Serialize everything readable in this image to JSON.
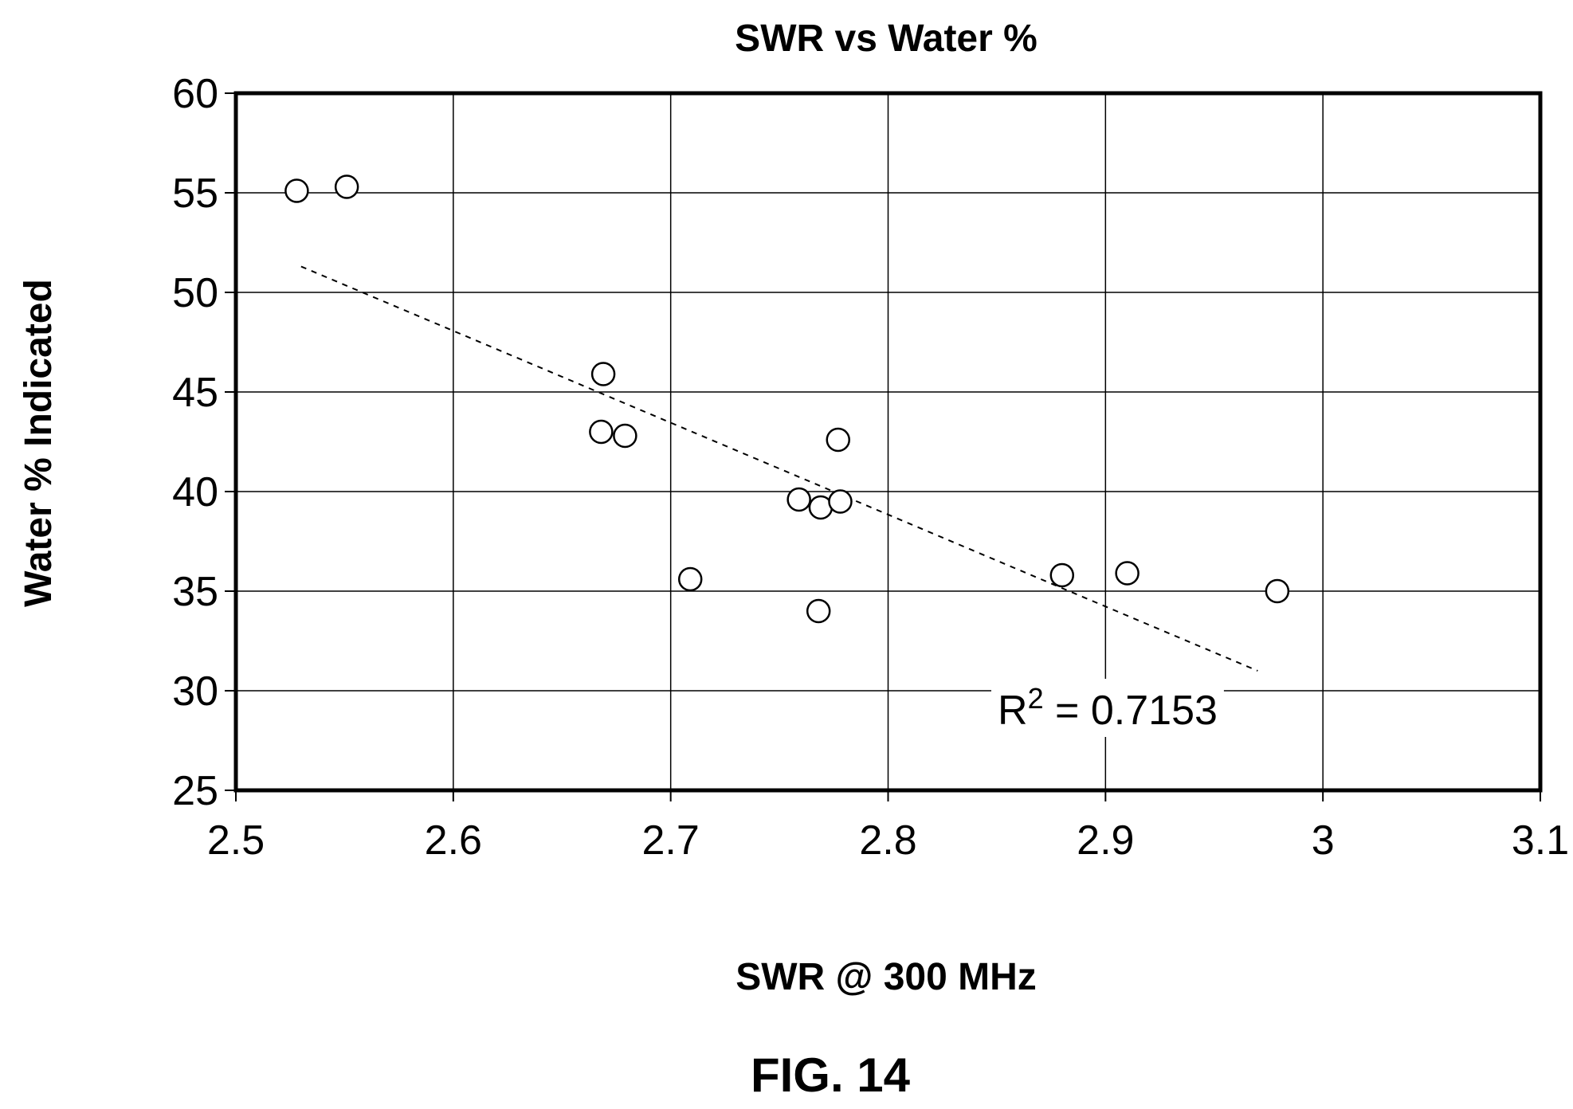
{
  "figure_caption": "FIG. 14",
  "chart_data": {
    "type": "scatter",
    "title": "SWR vs Water %",
    "xlabel": "SWR @ 300 MHz",
    "ylabel": "Water % Indicated",
    "xlim": [
      2.5,
      3.1
    ],
    "ylim": [
      25,
      60
    ],
    "x_ticks": [
      "2.5",
      "2.6",
      "2.7",
      "2.8",
      "2.9",
      "3",
      "3.1"
    ],
    "y_ticks": [
      "25",
      "30",
      "35",
      "40",
      "45",
      "50",
      "55",
      "60"
    ],
    "grid": true,
    "points": [
      {
        "x": 2.528,
        "y": 55.1
      },
      {
        "x": 2.551,
        "y": 55.3
      },
      {
        "x": 2.669,
        "y": 45.9
      },
      {
        "x": 2.668,
        "y": 43.0
      },
      {
        "x": 2.679,
        "y": 42.8
      },
      {
        "x": 2.709,
        "y": 35.6
      },
      {
        "x": 2.759,
        "y": 39.6
      },
      {
        "x": 2.769,
        "y": 39.2
      },
      {
        "x": 2.778,
        "y": 39.5
      },
      {
        "x": 2.777,
        "y": 42.6
      },
      {
        "x": 2.768,
        "y": 34.0
      },
      {
        "x": 2.88,
        "y": 35.8
      },
      {
        "x": 2.91,
        "y": 35.9
      },
      {
        "x": 2.979,
        "y": 35.0
      }
    ],
    "trendline": {
      "type": "linear",
      "x": [
        2.53,
        2.97
      ],
      "y": [
        51.3,
        31.0
      ],
      "r_squared_label": {
        "base": "R",
        "exponent": "2",
        "value": " = 0.7153"
      }
    }
  }
}
